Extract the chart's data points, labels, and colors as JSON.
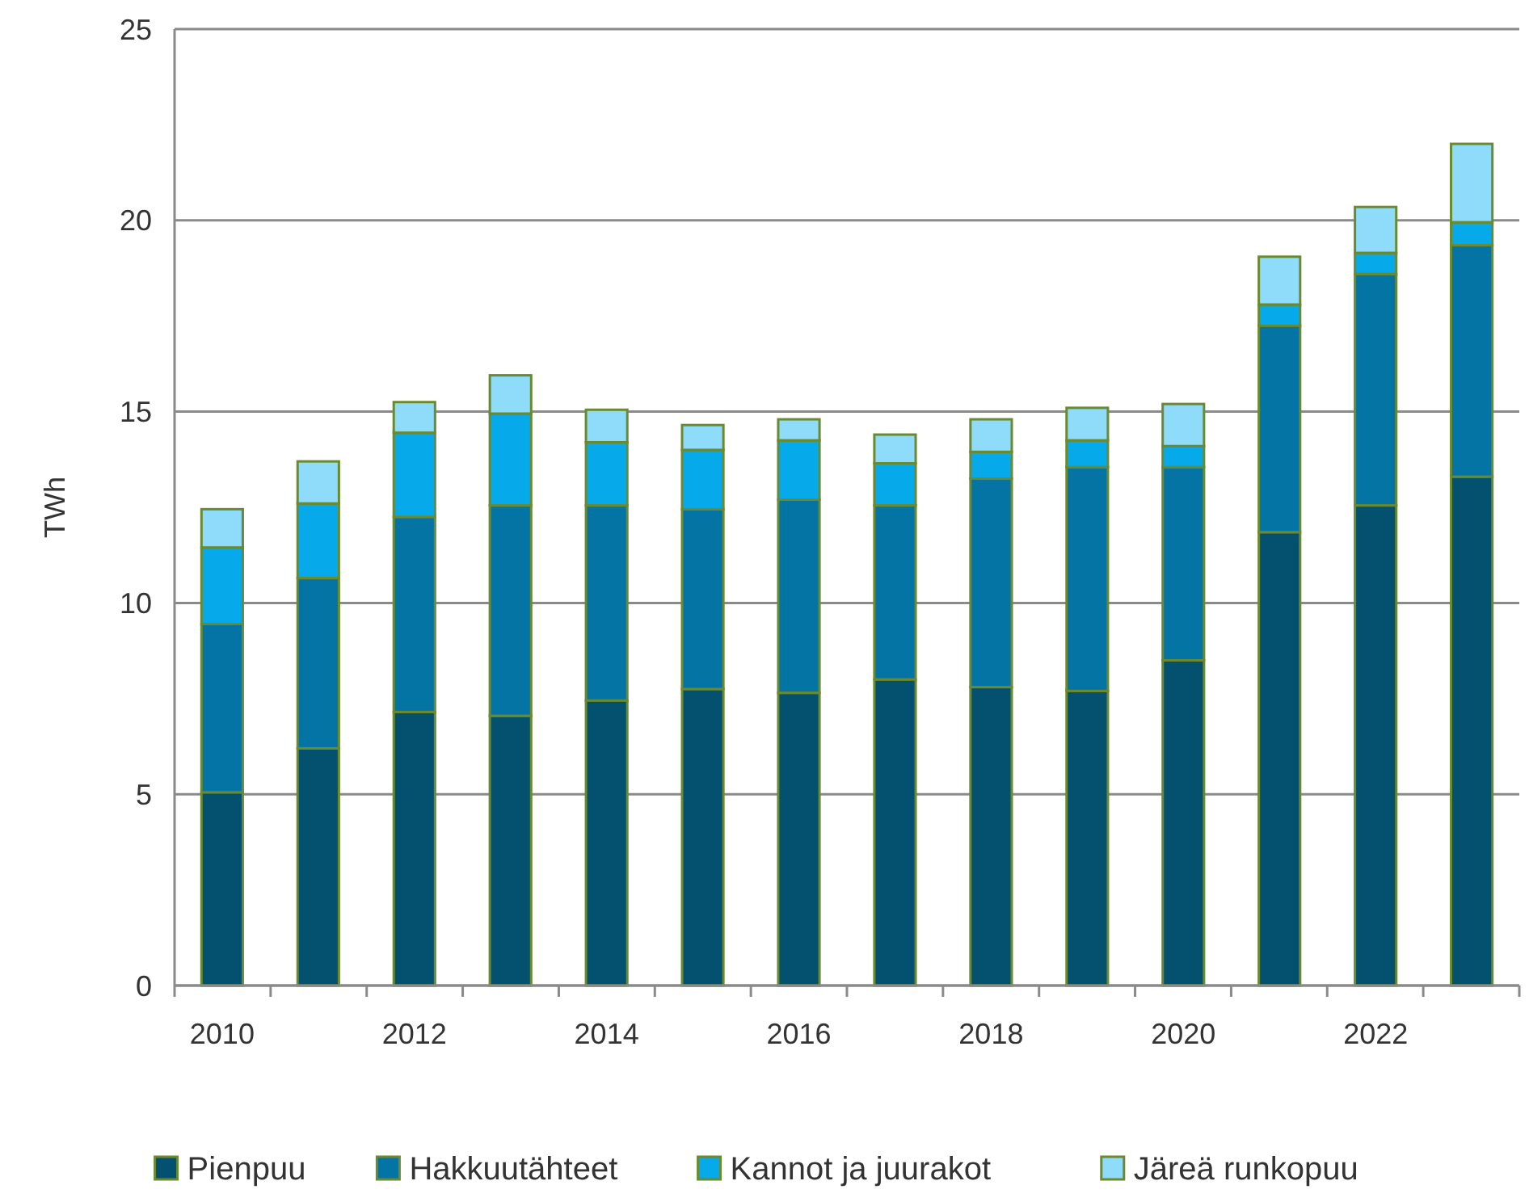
{
  "chart_data": {
    "type": "bar",
    "stacked": true,
    "ylabel": "TWh",
    "categories": [
      "2010",
      null,
      "2012",
      null,
      "2014",
      null,
      "2016",
      null,
      "2018",
      null,
      "2020",
      null,
      "2022",
      null
    ],
    "series": [
      {
        "name": "Pienpuu",
        "color": "#04506f",
        "values": [
          5.05,
          6.2,
          7.15,
          7.05,
          7.45,
          7.75,
          7.65,
          8.0,
          7.8,
          7.7,
          8.5,
          11.85,
          12.55,
          13.3
        ]
      },
      {
        "name": "Hakkuutähteet",
        "color": "#0474a4",
        "values": [
          4.4,
          4.45,
          5.1,
          5.5,
          5.1,
          4.7,
          5.05,
          4.55,
          5.45,
          5.85,
          5.05,
          5.4,
          6.05,
          6.05
        ]
      },
      {
        "name": "Kannot ja juurakot",
        "color": "#06aaeb",
        "values": [
          2.0,
          1.95,
          2.2,
          2.4,
          1.65,
          1.55,
          1.55,
          1.1,
          0.7,
          0.7,
          0.55,
          0.55,
          0.55,
          0.6
        ]
      },
      {
        "name": "Järeä runkopuu",
        "color": "#8fdcfa",
        "values": [
          1.0,
          1.1,
          0.8,
          1.0,
          0.85,
          0.65,
          0.55,
          0.75,
          0.85,
          0.85,
          1.1,
          1.25,
          1.2,
          2.05
        ]
      }
    ],
    "ylim": [
      0,
      25
    ],
    "yticks": [
      0,
      5,
      10,
      15,
      20,
      25
    ],
    "grid": "y",
    "legend": "bottom"
  }
}
